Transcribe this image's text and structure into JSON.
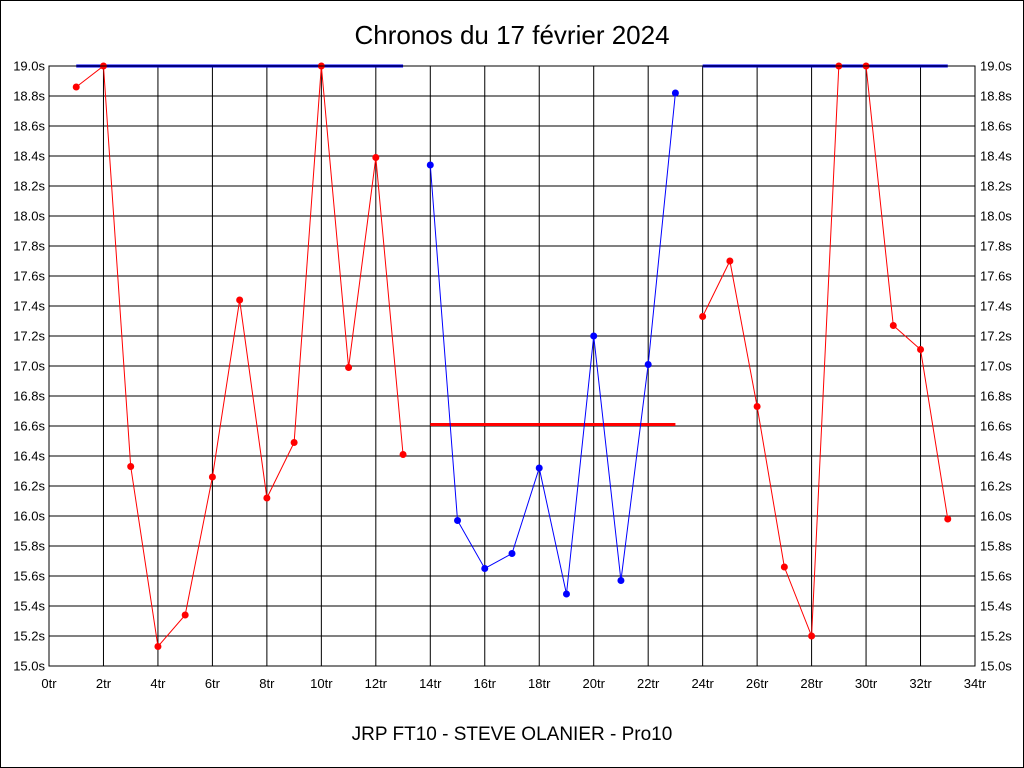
{
  "chart_data": {
    "type": "line",
    "title": "Chronos du 17 février 2024",
    "footer": "JRP FT10 - STEVE OLANIER - Pro10",
    "xlabel": "",
    "ylabel": "",
    "x_unit": "tr",
    "y_unit": "s",
    "xlim": [
      0,
      34
    ],
    "ylim": [
      15.0,
      19.0
    ],
    "x_ticks": [
      0,
      2,
      4,
      6,
      8,
      10,
      12,
      14,
      16,
      18,
      20,
      22,
      24,
      26,
      28,
      30,
      32,
      34
    ],
    "y_ticks": [
      15.0,
      15.2,
      15.4,
      15.6,
      15.8,
      16.0,
      16.2,
      16.4,
      16.6,
      16.8,
      17.0,
      17.2,
      17.4,
      17.6,
      17.8,
      18.0,
      18.2,
      18.4,
      18.6,
      18.8,
      19.0
    ],
    "x_vgrid": [
      0,
      2,
      4,
      6,
      8,
      10,
      12,
      14,
      16,
      18,
      20,
      22,
      24,
      26,
      28,
      30,
      32,
      34
    ],
    "grid": true,
    "series": [
      {
        "color": "#ff0000",
        "x": [
          1,
          2,
          3,
          4,
          5,
          6,
          7,
          8,
          9,
          10,
          11,
          12,
          13
        ],
        "y": [
          18.86,
          19.0,
          16.33,
          15.13,
          15.34,
          16.26,
          17.44,
          16.12,
          16.49,
          19.0,
          16.99,
          18.39,
          16.41
        ]
      },
      {
        "color": "#0000ff",
        "x": [
          14,
          15,
          16,
          17,
          18,
          19,
          20,
          21,
          22,
          23
        ],
        "y": [
          18.34,
          15.97,
          15.65,
          15.75,
          16.32,
          15.48,
          17.2,
          15.57,
          17.01,
          18.82
        ]
      },
      {
        "color": "#ff0000",
        "x": [
          24,
          25,
          26,
          27,
          28,
          29,
          30,
          31,
          32,
          33
        ],
        "y": [
          17.33,
          17.7,
          16.73,
          15.66,
          15.2,
          19.0,
          19.0,
          17.27,
          17.11,
          15.98
        ]
      }
    ],
    "reference_lines": [
      {
        "color": "#0000ff",
        "x": [
          1,
          13
        ],
        "y": 19.0
      },
      {
        "color": "#ff0000",
        "x": [
          14,
          23
        ],
        "y": 16.61
      },
      {
        "color": "#0000ff",
        "x": [
          24,
          33
        ],
        "y": 19.0
      }
    ]
  }
}
